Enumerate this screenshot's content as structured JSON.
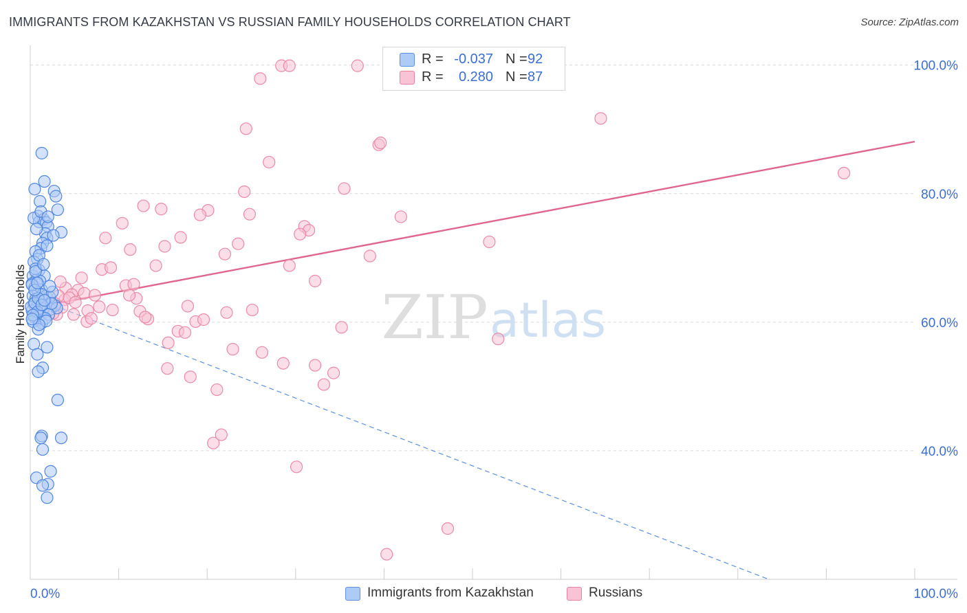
{
  "header": {
    "title": "IMMIGRANTS FROM KAZAKHSTAN VS RUSSIAN FAMILY HOUSEHOLDS CORRELATION CHART",
    "source": "Source: ZipAtlas.com"
  },
  "watermark": {
    "zip": "ZIP",
    "atlas": "atlas"
  },
  "legend": {
    "r_label": "R =",
    "n_label": "N =",
    "series": [
      {
        "name": "Immigrants from Kazakhstan",
        "r": "-0.037",
        "n": "92",
        "fill": "#aecbf5",
        "stroke": "#5b8fe0"
      },
      {
        "name": "Russians",
        "r": "0.280",
        "n": "87",
        "fill": "#f8c3d5",
        "stroke": "#e8819f"
      }
    ]
  },
  "colors": {
    "blue_fill": "#aecbf5",
    "blue_stroke": "#4f86df",
    "blue_line": "#5b8fe0",
    "pink_fill": "#f8c3d5",
    "pink_stroke": "#e98aa6",
    "pink_line": "#e0668f",
    "grid": "#d9d9d9",
    "axis_text": "#3b6ed4"
  },
  "chart_data": {
    "type": "scatter",
    "title": "IMMIGRANTS FROM KAZAKHSTAN VS RUSSIAN FAMILY HOUSEHOLDS CORRELATION CHART",
    "xlabel": "",
    "ylabel": "Family Households",
    "xlim": [
      0,
      100
    ],
    "ylim": [
      20,
      102
    ],
    "x_tick_labels": [
      "0.0%",
      "100.0%"
    ],
    "y_ticks": [
      40,
      60,
      80,
      100
    ],
    "y_tick_labels": [
      "40.0%",
      "60.0%",
      "80.0%",
      "100.0%"
    ],
    "grid": true,
    "series": [
      {
        "name": "Immigrants from Kazakhstan",
        "trend": {
          "x": [
            0,
            83.5
          ],
          "y": [
            64.0,
            20.0
          ],
          "style": "dashed"
        },
        "points": [
          [
            0.5,
            80.7
          ],
          [
            1.3,
            86.3
          ],
          [
            1.6,
            81.9
          ],
          [
            2.7,
            80.4
          ],
          [
            2.9,
            79.6
          ],
          [
            3.1,
            77.5
          ],
          [
            1.1,
            78.8
          ],
          [
            0.9,
            76.5
          ],
          [
            1.5,
            76.0
          ],
          [
            1.0,
            75.6
          ],
          [
            1.8,
            75.5
          ],
          [
            2.0,
            74.9
          ],
          [
            3.5,
            74.0
          ],
          [
            1.7,
            73.8
          ],
          [
            1.9,
            73.1
          ],
          [
            1.4,
            72.3
          ],
          [
            1.2,
            71.5
          ],
          [
            0.6,
            71.0
          ],
          [
            0.8,
            69.8
          ],
          [
            0.4,
            69.4
          ],
          [
            1.0,
            68.1
          ],
          [
            0.3,
            67.2
          ],
          [
            0.7,
            66.6
          ],
          [
            0.2,
            66.0
          ],
          [
            0.5,
            65.4
          ],
          [
            1.3,
            65.0
          ],
          [
            0.9,
            64.6
          ],
          [
            0.3,
            64.1
          ],
          [
            0.6,
            63.6
          ],
          [
            1.1,
            63.2
          ],
          [
            0.4,
            62.8
          ],
          [
            0.8,
            62.5
          ],
          [
            1.5,
            62.1
          ],
          [
            0.2,
            61.8
          ],
          [
            0.7,
            61.4
          ],
          [
            1.2,
            61.0
          ],
          [
            0.5,
            60.7
          ],
          [
            0.9,
            60.3
          ],
          [
            1.3,
            59.9
          ],
          [
            2.3,
            62.0
          ],
          [
            2.8,
            62.6
          ],
          [
            3.0,
            62.2
          ],
          [
            1.8,
            64.1
          ],
          [
            0.4,
            56.6
          ],
          [
            1.9,
            56.1
          ],
          [
            0.8,
            55.0
          ],
          [
            1.4,
            52.9
          ],
          [
            0.9,
            52.3
          ],
          [
            3.1,
            47.9
          ],
          [
            1.3,
            42.3
          ],
          [
            1.2,
            42.0
          ],
          [
            3.5,
            42.0
          ],
          [
            1.4,
            40.2
          ],
          [
            2.3,
            36.8
          ],
          [
            0.7,
            35.8
          ],
          [
            2.0,
            34.8
          ],
          [
            1.4,
            34.6
          ],
          [
            1.9,
            32.7
          ],
          [
            0.6,
            68.3
          ],
          [
            1.0,
            70.4
          ],
          [
            2.2,
            63.9
          ],
          [
            0.3,
            60.1
          ],
          [
            1.6,
            67.2
          ],
          [
            0.1,
            62.4
          ],
          [
            0.9,
            58.9
          ],
          [
            2.1,
            61.2
          ],
          [
            1.7,
            60.6
          ],
          [
            0.5,
            63.0
          ],
          [
            1.1,
            66.4
          ],
          [
            0.2,
            65.8
          ],
          [
            1.4,
            64.3
          ],
          [
            0.8,
            61.6
          ],
          [
            2.4,
            62.9
          ],
          [
            0.6,
            67.9
          ],
          [
            1.9,
            71.9
          ],
          [
            2.6,
            73.5
          ],
          [
            0.4,
            76.2
          ],
          [
            1.2,
            77.2
          ],
          [
            2.0,
            76.4
          ],
          [
            0.7,
            74.5
          ],
          [
            1.5,
            69.0
          ],
          [
            0.9,
            63.7
          ],
          [
            0.3,
            61.1
          ],
          [
            1.8,
            60.2
          ],
          [
            1.0,
            59.6
          ],
          [
            2.5,
            64.7
          ],
          [
            0.5,
            65.0
          ],
          [
            1.3,
            62.7
          ],
          [
            0.2,
            60.5
          ],
          [
            1.6,
            63.4
          ],
          [
            2.2,
            65.6
          ],
          [
            0.8,
            66.1
          ]
        ]
      },
      {
        "name": "Russians",
        "trend": {
          "x": [
            2.5,
            100
          ],
          "y": [
            62.8,
            88.1
          ],
          "style": "solid"
        },
        "points": [
          [
            28.4,
            99.9
          ],
          [
            29.3,
            99.9
          ],
          [
            37.0,
            99.9
          ],
          [
            26.0,
            97.9
          ],
          [
            64.5,
            91.7
          ],
          [
            24.4,
            90.1
          ],
          [
            39.4,
            87.6
          ],
          [
            39.6,
            87.9
          ],
          [
            27.0,
            84.9
          ],
          [
            92.0,
            83.2
          ],
          [
            35.5,
            80.8
          ],
          [
            24.2,
            80.3
          ],
          [
            12.8,
            78.1
          ],
          [
            14.8,
            77.6
          ],
          [
            20.1,
            77.4
          ],
          [
            19.2,
            76.7
          ],
          [
            24.8,
            76.8
          ],
          [
            41.9,
            76.4
          ],
          [
            10.4,
            75.4
          ],
          [
            31.0,
            74.9
          ],
          [
            31.5,
            74.3
          ],
          [
            30.5,
            73.7
          ],
          [
            8.5,
            73.1
          ],
          [
            17.0,
            73.2
          ],
          [
            15.2,
            71.8
          ],
          [
            11.3,
            71.3
          ],
          [
            23.5,
            72.2
          ],
          [
            51.9,
            72.5
          ],
          [
            22.0,
            70.6
          ],
          [
            38.4,
            70.3
          ],
          [
            14.2,
            68.8
          ],
          [
            29.3,
            68.8
          ],
          [
            8.1,
            68.2
          ],
          [
            9.1,
            68.5
          ],
          [
            5.8,
            66.9
          ],
          [
            32.2,
            66.4
          ],
          [
            10.8,
            65.7
          ],
          [
            11.7,
            65.9
          ],
          [
            4.0,
            65.3
          ],
          [
            5.4,
            65.0
          ],
          [
            6.1,
            64.5
          ],
          [
            4.7,
            64.3
          ],
          [
            3.9,
            63.5
          ],
          [
            7.3,
            64.2
          ],
          [
            12.0,
            63.7
          ],
          [
            6.5,
            61.8
          ],
          [
            12.4,
            61.7
          ],
          [
            17.8,
            62.5
          ],
          [
            22.2,
            61.5
          ],
          [
            25.1,
            61.9
          ],
          [
            3.6,
            62.3
          ],
          [
            4.9,
            61.2
          ],
          [
            3.0,
            61.2
          ],
          [
            6.4,
            60.1
          ],
          [
            13.3,
            60.5
          ],
          [
            13.0,
            60.8
          ],
          [
            18.7,
            60.1
          ],
          [
            19.6,
            60.4
          ],
          [
            35.2,
            59.2
          ],
          [
            16.7,
            58.6
          ],
          [
            17.5,
            58.4
          ],
          [
            52.9,
            57.4
          ],
          [
            15.6,
            56.8
          ],
          [
            22.9,
            55.8
          ],
          [
            26.2,
            55.3
          ],
          [
            28.6,
            53.6
          ],
          [
            32.2,
            53.3
          ],
          [
            34.3,
            52.1
          ],
          [
            15.5,
            52.8
          ],
          [
            18.1,
            51.5
          ],
          [
            21.1,
            49.5
          ],
          [
            33.2,
            50.3
          ],
          [
            21.6,
            42.5
          ],
          [
            20.7,
            41.2
          ],
          [
            30.1,
            37.5
          ],
          [
            47.2,
            27.9
          ],
          [
            40.3,
            23.9
          ],
          [
            3.2,
            64.1
          ],
          [
            2.8,
            62.9
          ],
          [
            4.4,
            63.8
          ],
          [
            6.9,
            60.6
          ],
          [
            9.3,
            61.9
          ],
          [
            2.6,
            61.4
          ],
          [
            11.2,
            64.2
          ],
          [
            3.4,
            66.3
          ],
          [
            7.8,
            62.4
          ],
          [
            5.1,
            63.1
          ]
        ]
      }
    ]
  }
}
